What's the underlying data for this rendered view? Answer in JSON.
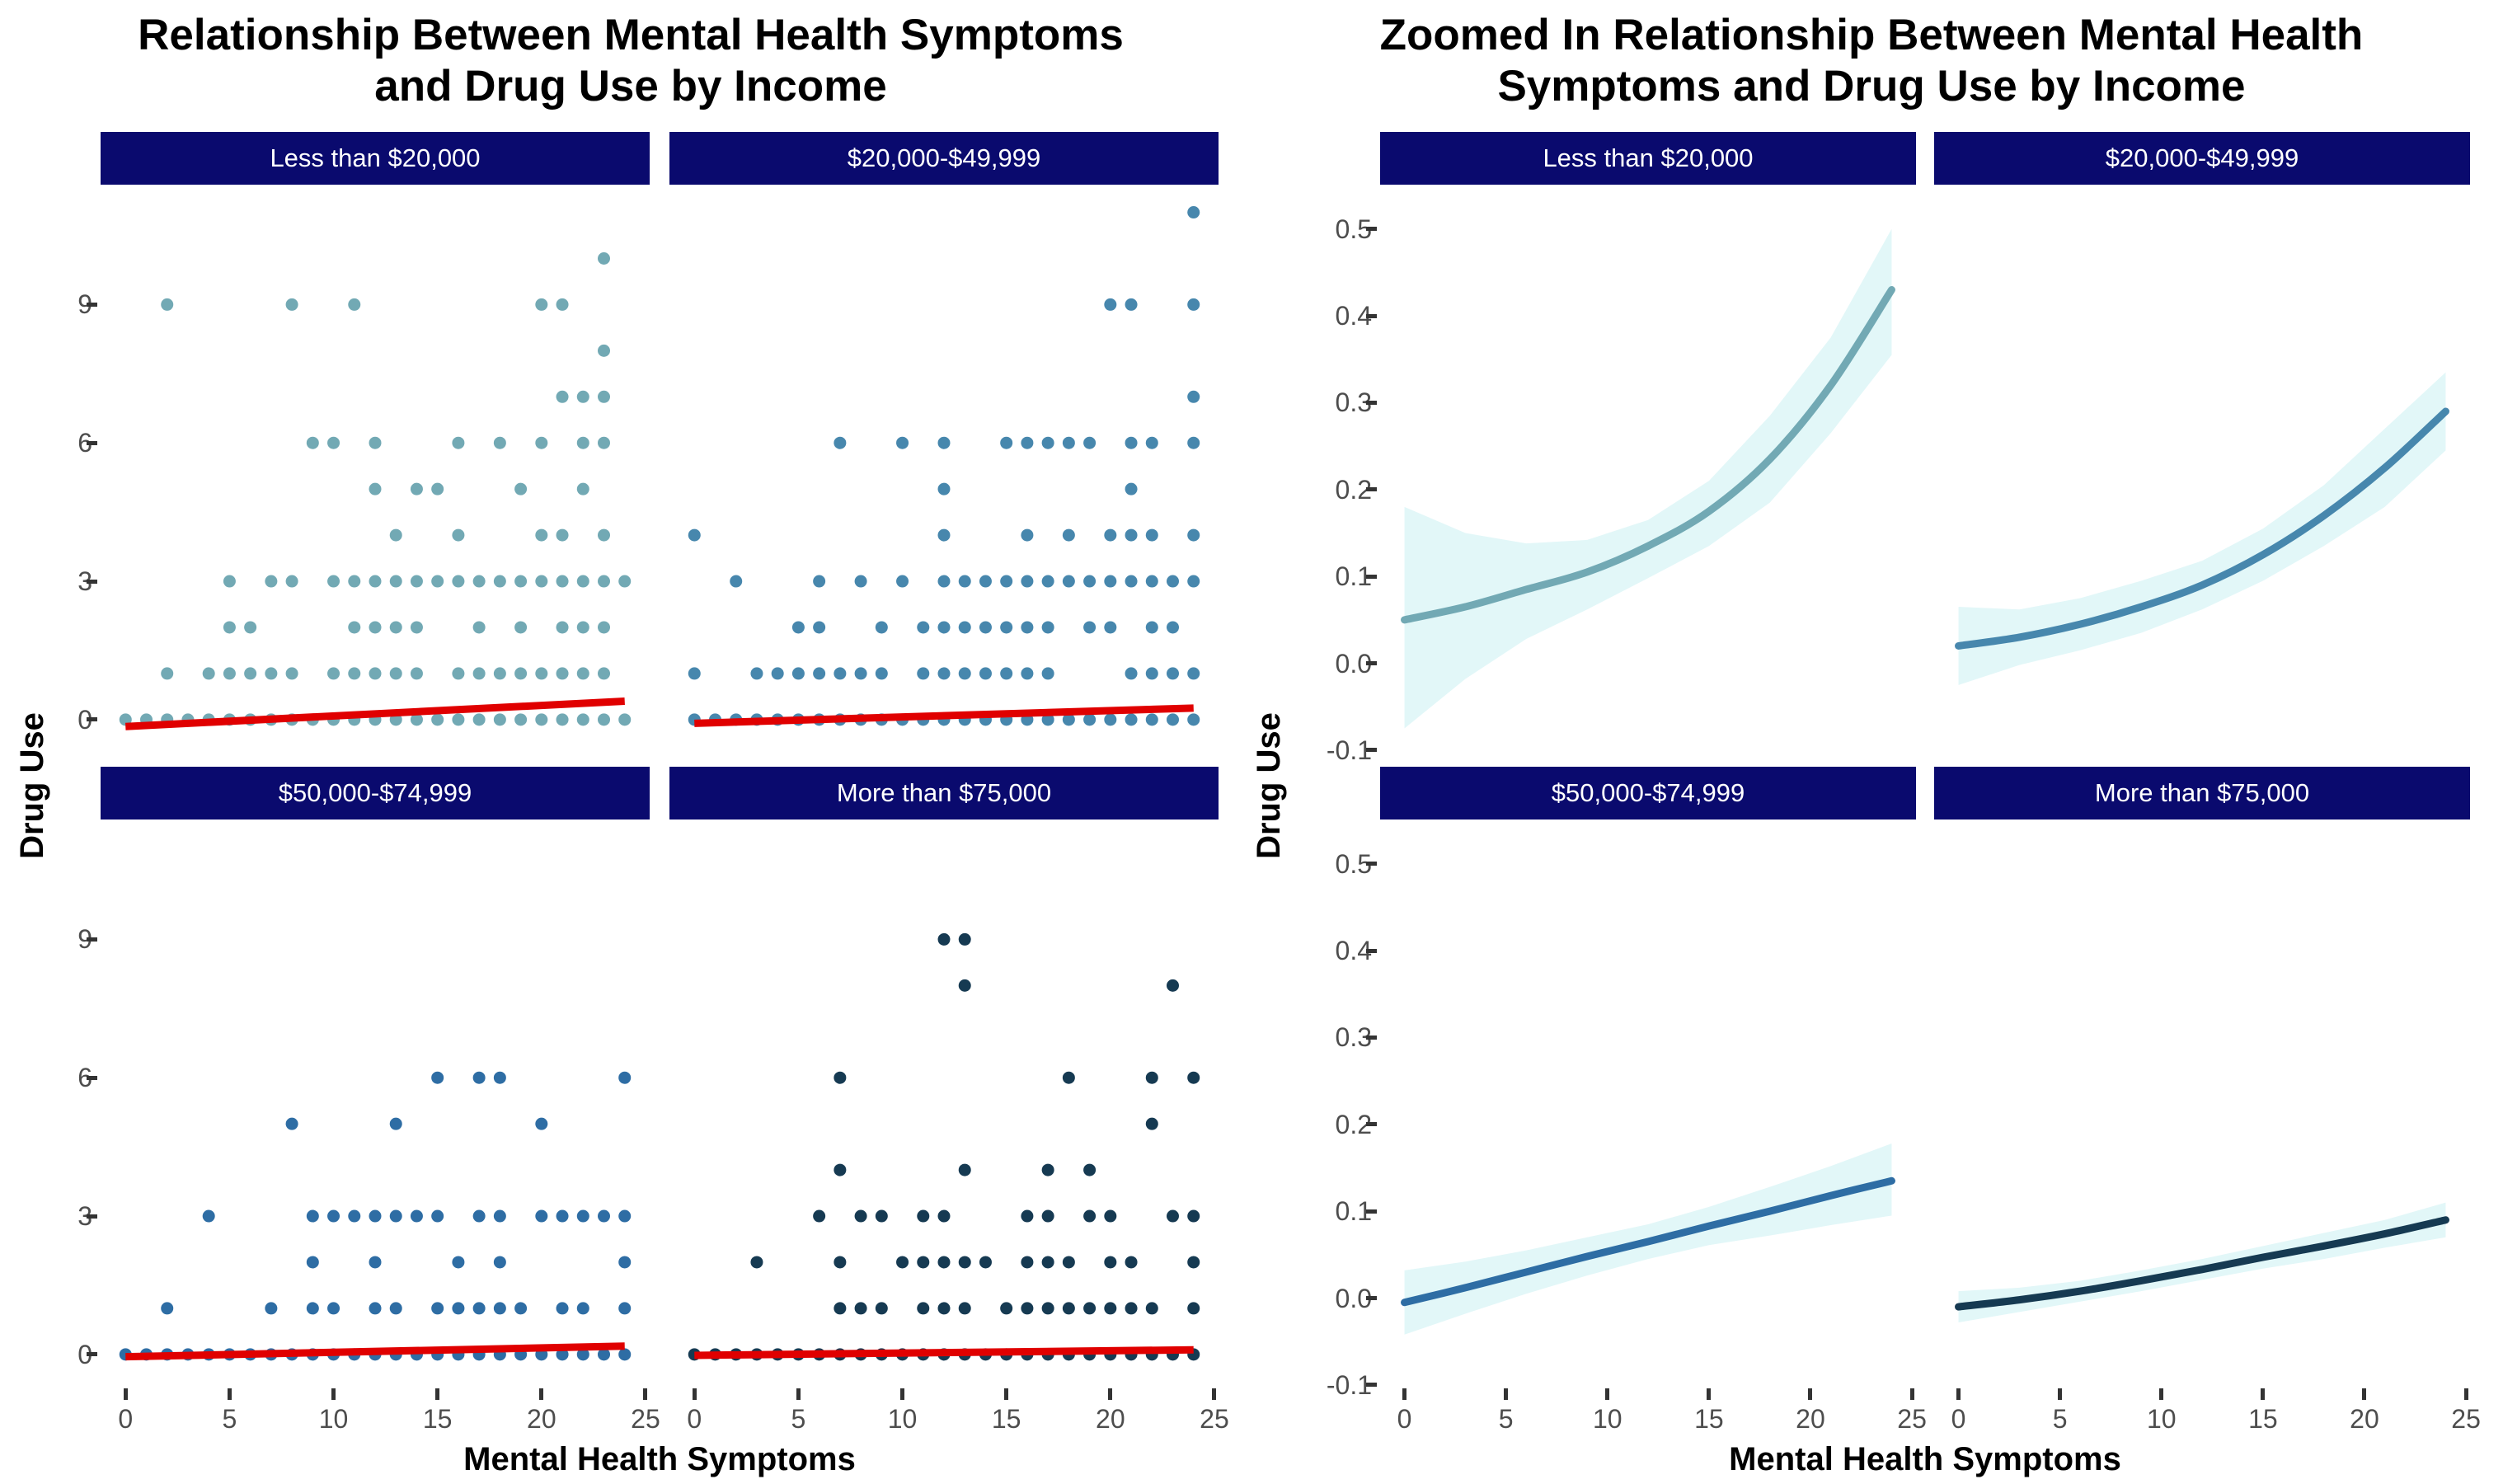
{
  "theme": {
    "background": "#FFFFFF",
    "strip_background": "#0A0A6E",
    "strip_text_color": "#FFFFFF",
    "tick_label_color": "#4D4D4D",
    "tick_mark_color": "#333333",
    "title_color": "#000000"
  },
  "chart_data": [
    {
      "type": "scatter",
      "title_lines": [
        "Relationship Between Mental Health Symptoms",
        "and Drug Use by Income"
      ],
      "xlabel": "Mental Health Symptoms",
      "ylabel": "Drug Use",
      "x_ticks": [
        0,
        5,
        10,
        15,
        20,
        25
      ],
      "y_tick_labels": [
        "9",
        "6",
        "3",
        "0"
      ],
      "y_tick_values": [
        9,
        6,
        3,
        0
      ],
      "x_domain": [
        -1.2,
        25.2
      ],
      "y_domain": [
        -0.7,
        11.6
      ],
      "grid": false,
      "legend": "none",
      "fit_line_color": "#E00000",
      "facets": [
        {
          "label": "Less than $20,000",
          "color": "#72A9B4",
          "rows": [
            [
              10,
              [
                23
              ]
            ],
            [
              9,
              [
                2,
                8,
                11,
                20,
                21
              ]
            ],
            [
              8,
              [
                23
              ]
            ],
            [
              7,
              [
                21,
                22,
                23
              ]
            ],
            [
              6,
              [
                9,
                10,
                12,
                16,
                18,
                20,
                22,
                23
              ]
            ],
            [
              5,
              [
                12,
                14,
                15,
                19,
                22
              ]
            ],
            [
              4,
              [
                13,
                16,
                20,
                21,
                23
              ]
            ],
            [
              3,
              [
                5,
                7,
                8,
                10,
                11,
                12,
                13,
                14,
                15,
                16,
                17,
                18,
                19,
                20,
                21,
                22,
                23,
                24
              ]
            ],
            [
              2,
              [
                5,
                6,
                11,
                12,
                13,
                14,
                17,
                19,
                21,
                22,
                23
              ]
            ],
            [
              1,
              [
                2,
                4,
                5,
                6,
                7,
                8,
                10,
                11,
                12,
                13,
                14,
                16,
                17,
                18,
                19,
                20,
                21,
                22,
                23
              ]
            ],
            [
              0,
              [
                0,
                1,
                2,
                3,
                4,
                5,
                6,
                7,
                8,
                9,
                10,
                11,
                12,
                13,
                14,
                15,
                16,
                17,
                18,
                19,
                20,
                21,
                22,
                23,
                24
              ]
            ]
          ],
          "fit_line": {
            "x": [
              0,
              24
            ],
            "y": [
              -0.15,
              0.4
            ]
          }
        },
        {
          "label": "$20,000-$49,999",
          "color": "#4787AD",
          "rows": [
            [
              11,
              [
                24
              ]
            ],
            [
              9,
              [
                20,
                21,
                24
              ]
            ],
            [
              7,
              [
                24
              ]
            ],
            [
              6,
              [
                7,
                10,
                12,
                15,
                16,
                17,
                18,
                19,
                21,
                22,
                24
              ]
            ],
            [
              5,
              [
                12,
                21
              ]
            ],
            [
              4,
              [
                0,
                12,
                16,
                18,
                20,
                21,
                22,
                24
              ]
            ],
            [
              3,
              [
                2,
                6,
                8,
                10,
                12,
                13,
                14,
                15,
                16,
                17,
                18,
                19,
                20,
                21,
                22,
                23,
                24
              ]
            ],
            [
              2,
              [
                5,
                6,
                9,
                11,
                12,
                13,
                14,
                15,
                16,
                17,
                19,
                20,
                22,
                23
              ]
            ],
            [
              1,
              [
                0,
                3,
                4,
                5,
                6,
                7,
                8,
                9,
                11,
                12,
                13,
                14,
                15,
                16,
                17,
                21,
                22,
                23,
                24
              ]
            ],
            [
              0,
              [
                0,
                1,
                2,
                3,
                4,
                5,
                6,
                7,
                8,
                9,
                10,
                11,
                12,
                13,
                14,
                15,
                16,
                17,
                18,
                19,
                20,
                21,
                22,
                23,
                24
              ]
            ]
          ],
          "fit_line": {
            "x": [
              0,
              24
            ],
            "y": [
              -0.08,
              0.25
            ]
          }
        },
        {
          "label": "$50,000-$74,999",
          "color": "#2E6DA4",
          "rows": [
            [
              6,
              [
                15,
                17,
                18,
                24
              ]
            ],
            [
              5,
              [
                8,
                13,
                20
              ]
            ],
            [
              3,
              [
                4,
                9,
                10,
                11,
                12,
                13,
                14,
                15,
                17,
                18,
                20,
                21,
                22,
                23,
                24
              ]
            ],
            [
              2,
              [
                9,
                12,
                16,
                18,
                24
              ]
            ],
            [
              1,
              [
                2,
                7,
                9,
                10,
                12,
                13,
                15,
                16,
                17,
                18,
                19,
                21,
                22,
                24
              ]
            ],
            [
              0,
              [
                0,
                1,
                2,
                3,
                4,
                5,
                6,
                7,
                8,
                9,
                10,
                11,
                12,
                13,
                14,
                15,
                16,
                17,
                18,
                19,
                20,
                21,
                22,
                23,
                24
              ]
            ]
          ],
          "fit_line": {
            "x": [
              0,
              24
            ],
            "y": [
              -0.05,
              0.18
            ]
          }
        },
        {
          "label": "More than $75,000",
          "color": "#163A52",
          "rows": [
            [
              9,
              [
                12,
                13
              ]
            ],
            [
              8,
              [
                13,
                23
              ]
            ],
            [
              6,
              [
                7,
                18,
                22,
                24
              ]
            ],
            [
              5,
              [
                22
              ]
            ],
            [
              4,
              [
                7,
                13,
                17,
                19
              ]
            ],
            [
              3,
              [
                6,
                8,
                9,
                11,
                12,
                16,
                17,
                19,
                20,
                23,
                24
              ]
            ],
            [
              2,
              [
                3,
                7,
                10,
                11,
                12,
                13,
                14,
                16,
                17,
                18,
                20,
                21,
                24
              ]
            ],
            [
              1,
              [
                7,
                8,
                9,
                11,
                12,
                13,
                15,
                16,
                17,
                18,
                19,
                20,
                21,
                22,
                24
              ]
            ],
            [
              0,
              [
                0,
                1,
                2,
                3,
                4,
                5,
                6,
                7,
                8,
                9,
                10,
                11,
                12,
                13,
                14,
                15,
                16,
                17,
                18,
                19,
                20,
                21,
                22,
                23,
                24
              ]
            ]
          ],
          "fit_line": {
            "x": [
              0,
              24
            ],
            "y": [
              -0.02,
              0.1
            ]
          }
        }
      ]
    },
    {
      "type": "line",
      "title_lines": [
        "Zoomed In Relationship Between Mental Health",
        "Symptoms and Drug Use by Income"
      ],
      "xlabel": "Mental Health Symptoms",
      "ylabel": "Drug Use",
      "x_ticks": [
        0,
        5,
        10,
        15,
        20,
        25
      ],
      "y_tick_labels": [
        "0.5",
        "0.4",
        "0.3",
        "0.2",
        "0.1",
        "0.0",
        "-0.1"
      ],
      "y_tick_values": [
        0.5,
        0.4,
        0.3,
        0.2,
        0.1,
        0.0,
        -0.1
      ],
      "x_domain": [
        -1.2,
        25.2
      ],
      "y_domain": [
        -0.102,
        0.551
      ],
      "grid": false,
      "legend": "none",
      "ribbon_color": "#E2F7F8",
      "facets": [
        {
          "label": "Less than $20,000",
          "color": "#72A9B4",
          "curve": {
            "x": [
              0,
              3,
              6,
              9,
              12,
              15,
              18,
              21,
              24
            ],
            "y": [
              0.05,
              0.065,
              0.085,
              0.105,
              0.135,
              0.175,
              0.235,
              0.32,
              0.43
            ]
          },
          "ribbon": {
            "x": [
              0,
              3,
              6,
              9,
              12,
              15,
              18,
              21,
              24
            ],
            "upper": [
              0.18,
              0.15,
              0.138,
              0.142,
              0.165,
              0.21,
              0.285,
              0.375,
              0.5
            ],
            "lower": [
              -0.075,
              -0.018,
              0.028,
              0.062,
              0.098,
              0.135,
              0.185,
              0.265,
              0.355
            ]
          }
        },
        {
          "label": "$20,000-$49,999",
          "color": "#4787AD",
          "curve": {
            "x": [
              0,
              3,
              6,
              9,
              12,
              15,
              18,
              21,
              24
            ],
            "y": [
              0.02,
              0.03,
              0.045,
              0.065,
              0.09,
              0.125,
              0.17,
              0.225,
              0.29
            ]
          },
          "ribbon": {
            "x": [
              0,
              3,
              6,
              9,
              12,
              15,
              18,
              21,
              24
            ],
            "upper": [
              0.065,
              0.062,
              0.075,
              0.095,
              0.118,
              0.155,
              0.205,
              0.27,
              0.335
            ],
            "lower": [
              -0.025,
              -0.002,
              0.015,
              0.035,
              0.062,
              0.095,
              0.135,
              0.18,
              0.245
            ]
          }
        },
        {
          "label": "$50,000-$74,999",
          "color": "#2E6DA4",
          "curve": {
            "x": [
              0,
              3,
              6,
              9,
              12,
              15,
              18,
              21,
              24
            ],
            "y": [
              -0.005,
              0.012,
              0.03,
              0.048,
              0.065,
              0.083,
              0.1,
              0.118,
              0.135
            ]
          },
          "ribbon": {
            "x": [
              0,
              3,
              6,
              9,
              12,
              15,
              18,
              21,
              24
            ],
            "upper": [
              0.032,
              0.042,
              0.055,
              0.07,
              0.085,
              0.105,
              0.128,
              0.152,
              0.178
            ],
            "lower": [
              -0.042,
              -0.018,
              0.005,
              0.026,
              0.045,
              0.061,
              0.072,
              0.084,
              0.095
            ]
          }
        },
        {
          "label": "More than $75,000",
          "color": "#163A52",
          "curve": {
            "x": [
              0,
              3,
              6,
              9,
              12,
              15,
              18,
              21,
              24
            ],
            "y": [
              -0.01,
              -0.002,
              0.008,
              0.02,
              0.033,
              0.047,
              0.06,
              0.074,
              0.09
            ]
          },
          "ribbon": {
            "x": [
              0,
              3,
              6,
              9,
              12,
              15,
              18,
              21,
              24
            ],
            "upper": [
              0.008,
              0.012,
              0.02,
              0.032,
              0.045,
              0.06,
              0.075,
              0.09,
              0.11
            ],
            "lower": [
              -0.028,
              -0.016,
              -0.004,
              0.008,
              0.021,
              0.034,
              0.045,
              0.058,
              0.07
            ]
          }
        }
      ]
    }
  ]
}
